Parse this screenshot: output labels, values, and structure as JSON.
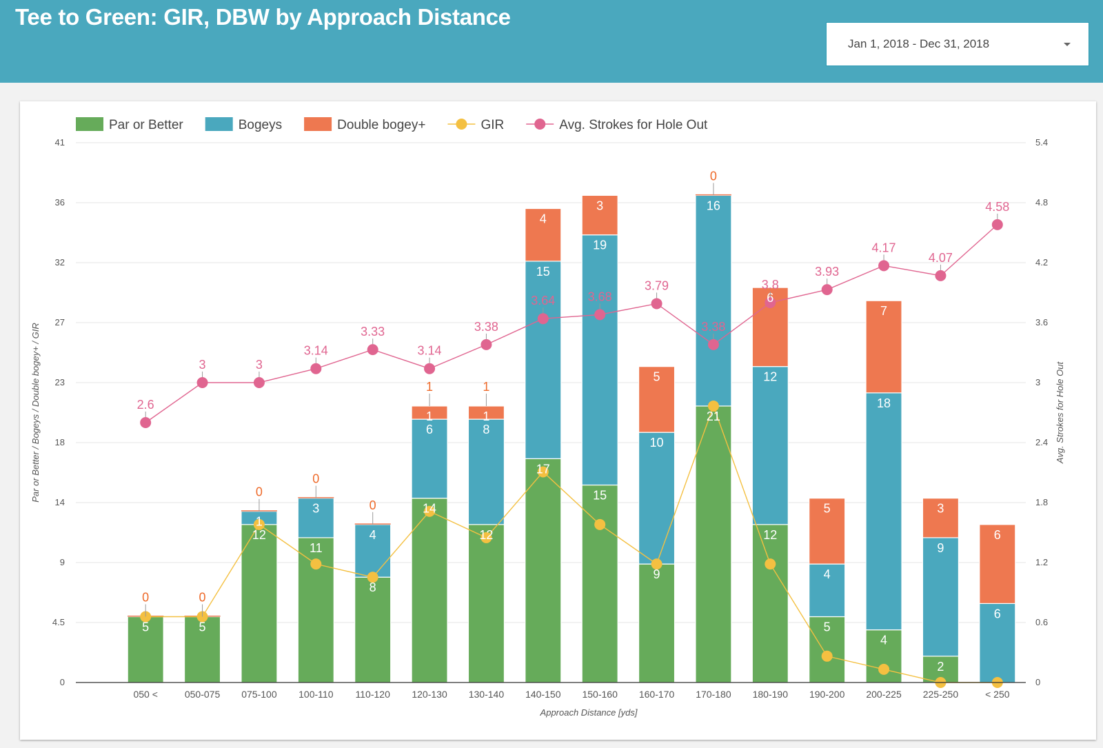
{
  "header": {
    "title": "Tee to Green: GIR, DBW by Approach Distance",
    "date_range": "Jan 1, 2018 - Dec 31, 2018"
  },
  "colors": {
    "header_bg": "#4aa8be",
    "par": "#66ab5a",
    "bogey": "#4aa8be",
    "double": "#ee7850",
    "gir": "#f4c041",
    "avg": "#e06590"
  },
  "chart_data": {
    "type": "bar",
    "stacked": true,
    "title": "",
    "xlabel": "Approach Distance [yds]",
    "ylabel": "Par or Better | Bogeys | Double bogey+ | GIR",
    "y2label": "Avg. Strokes for Hole Out",
    "ylim": [
      0,
      41
    ],
    "y2lim": [
      0,
      5.4
    ],
    "yticks": [
      "0",
      "4.5",
      "9",
      "14",
      "18",
      "23",
      "27",
      "32",
      "36",
      "41"
    ],
    "y2ticks": [
      "0",
      "0.6",
      "1.2",
      "1.8",
      "2.4",
      "3",
      "3.6",
      "4.2",
      "4.8",
      "5.4"
    ],
    "grid": true,
    "legend_position": "top-left",
    "categories": [
      "050 <",
      "050-075",
      "075-100",
      "100-110",
      "110-120",
      "120-130",
      "130-140",
      "140-150",
      "150-160",
      "160-170",
      "170-180",
      "180-190",
      "190-200",
      "200-225",
      "225-250",
      "< 250"
    ],
    "series": [
      {
        "name": "Par or Better",
        "kind": "bar",
        "axis": "left",
        "values": [
          5,
          5,
          12,
          11,
          8,
          14,
          12,
          17,
          15,
          9,
          21,
          12,
          5,
          4,
          2,
          0
        ]
      },
      {
        "name": "Bogeys",
        "kind": "bar",
        "axis": "left",
        "values": [
          0,
          0,
          1,
          3,
          4,
          6,
          8,
          15,
          19,
          10,
          16,
          12,
          4,
          18,
          9,
          6
        ]
      },
      {
        "name": "Double bogey+",
        "kind": "bar",
        "axis": "left",
        "values": [
          0,
          0,
          0,
          0,
          0,
          1,
          1,
          4,
          3,
          5,
          0,
          6,
          5,
          7,
          3,
          6
        ]
      },
      {
        "name": "GIR",
        "kind": "line",
        "axis": "left",
        "values": [
          5,
          5,
          12,
          9,
          8,
          13,
          11,
          16,
          12,
          9,
          21,
          9,
          2,
          1,
          0,
          0
        ]
      },
      {
        "name": "Avg. Strokes for Hole Out",
        "kind": "line",
        "axis": "right",
        "values": [
          2.6,
          3,
          3,
          3.14,
          3.33,
          3.14,
          3.38,
          3.64,
          3.68,
          3.79,
          3.38,
          3.8,
          3.93,
          4.17,
          4.07,
          4.58
        ]
      }
    ]
  }
}
